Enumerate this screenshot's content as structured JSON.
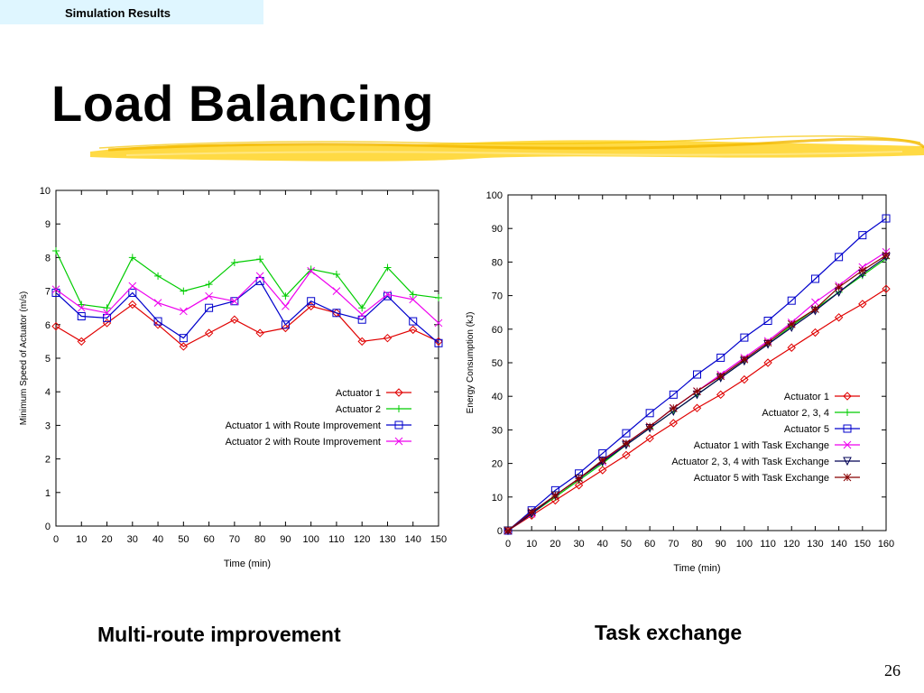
{
  "header": {
    "section_label": "Simulation Results"
  },
  "slide": {
    "title": "Load Balancing",
    "page_number": "26"
  },
  "captions": {
    "left": "Multi-route improvement",
    "right": "Task exchange"
  },
  "chart_data": [
    {
      "type": "line",
      "title": "",
      "xlabel": "Time (min)",
      "ylabel": "Minimum Speed of Actuator (m/s)",
      "xlim": [
        0,
        150
      ],
      "ylim": [
        0,
        10
      ],
      "x_ticks": [
        0,
        10,
        20,
        30,
        40,
        50,
        60,
        70,
        80,
        90,
        100,
        110,
        120,
        130,
        140,
        150
      ],
      "y_ticks": [
        0,
        1,
        2,
        3,
        4,
        5,
        6,
        7,
        8,
        9,
        10
      ],
      "grid": false,
      "legend_position": "bottom-right",
      "x": [
        0,
        10,
        20,
        30,
        40,
        50,
        60,
        70,
        80,
        90,
        100,
        110,
        120,
        130,
        140,
        150
      ],
      "series": [
        {
          "name": "Actuator 1",
          "color": "#e00000",
          "marker": "diamond",
          "values": [
            5.95,
            5.5,
            6.05,
            6.6,
            6.0,
            5.35,
            5.75,
            6.15,
            5.75,
            5.9,
            6.55,
            6.35,
            5.5,
            5.6,
            5.85,
            5.5
          ]
        },
        {
          "name": "Actuator 2",
          "color": "#00cc00",
          "marker": "plus",
          "values": [
            8.2,
            6.6,
            6.5,
            8.0,
            7.45,
            7.0,
            7.2,
            7.85,
            7.95,
            6.85,
            7.65,
            7.5,
            6.5,
            7.7,
            6.9,
            6.8
          ]
        },
        {
          "name": "Actuator 1 with Route Improvement",
          "color": "#0000cc",
          "marker": "square",
          "values": [
            6.95,
            6.25,
            6.2,
            6.95,
            6.1,
            5.6,
            6.5,
            6.7,
            7.3,
            6.0,
            6.7,
            6.35,
            6.15,
            6.85,
            6.1,
            5.45
          ]
        },
        {
          "name": "Actuator 2 with Route Improvement",
          "color": "#ee00ee",
          "marker": "x",
          "values": [
            7.05,
            6.5,
            6.35,
            7.15,
            6.65,
            6.4,
            6.85,
            6.7,
            7.45,
            6.55,
            7.6,
            7.0,
            6.3,
            6.9,
            6.75,
            6.05
          ]
        }
      ]
    },
    {
      "type": "line",
      "title": "",
      "xlabel": "Time (min)",
      "ylabel": "Energy Consumption (kJ)",
      "xlim": [
        0,
        160
      ],
      "ylim": [
        0,
        100
      ],
      "x_ticks": [
        0,
        10,
        20,
        30,
        40,
        50,
        60,
        70,
        80,
        90,
        100,
        110,
        120,
        130,
        140,
        150,
        160
      ],
      "y_ticks": [
        0,
        10,
        20,
        30,
        40,
        50,
        60,
        70,
        80,
        90,
        100
      ],
      "grid": false,
      "legend_position": "bottom-right",
      "x": [
        0,
        10,
        20,
        30,
        40,
        50,
        60,
        70,
        80,
        90,
        100,
        110,
        120,
        130,
        140,
        150,
        160
      ],
      "series": [
        {
          "name": "Actuator 1",
          "color": "#e00000",
          "marker": "diamond",
          "values": [
            0,
            4.5,
            9.0,
            13.5,
            18.0,
            22.5,
            27.5,
            32.0,
            36.5,
            40.5,
            45.0,
            50.0,
            54.5,
            59.0,
            63.5,
            67.5,
            72.0
          ]
        },
        {
          "name": "Actuator 2, 3, 4",
          "color": "#00cc00",
          "marker": "plus",
          "values": [
            0,
            5.0,
            10.0,
            15.0,
            20.0,
            25.5,
            30.5,
            35.5,
            40.5,
            45.5,
            50.5,
            55.5,
            61.0,
            66.0,
            71.0,
            76.0,
            81.0
          ]
        },
        {
          "name": "Actuator 5",
          "color": "#0000cc",
          "marker": "square",
          "values": [
            0,
            6.0,
            12.0,
            17.0,
            23.0,
            29.0,
            35.0,
            40.5,
            46.5,
            51.5,
            57.5,
            62.5,
            68.5,
            75.0,
            81.5,
            88.0,
            93.0
          ]
        },
        {
          "name": "Actuator 1 with Task Exchange",
          "color": "#ee00ee",
          "marker": "x",
          "values": [
            0,
            5.0,
            10.5,
            15.5,
            20.5,
            26.0,
            31.0,
            36.5,
            41.5,
            46.5,
            51.5,
            56.5,
            62.0,
            68.0,
            73.0,
            78.5,
            83.0
          ]
        },
        {
          "name": "Actuator 2, 3, 4 with Task Exchange",
          "color": "#000055",
          "marker": "triangle-down",
          "values": [
            0,
            5.0,
            10.5,
            15.5,
            20.5,
            25.5,
            30.5,
            35.5,
            40.5,
            45.5,
            50.5,
            55.5,
            60.5,
            65.5,
            71.0,
            76.5,
            81.5
          ]
        },
        {
          "name": "Actuator 5 with Task Exchange",
          "color": "#880000",
          "marker": "star",
          "values": [
            0,
            5.5,
            10.5,
            15.5,
            21.0,
            26.0,
            31.0,
            36.5,
            41.5,
            46.0,
            51.0,
            56.0,
            61.5,
            66.0,
            72.5,
            77.5,
            82.0
          ]
        }
      ]
    }
  ]
}
